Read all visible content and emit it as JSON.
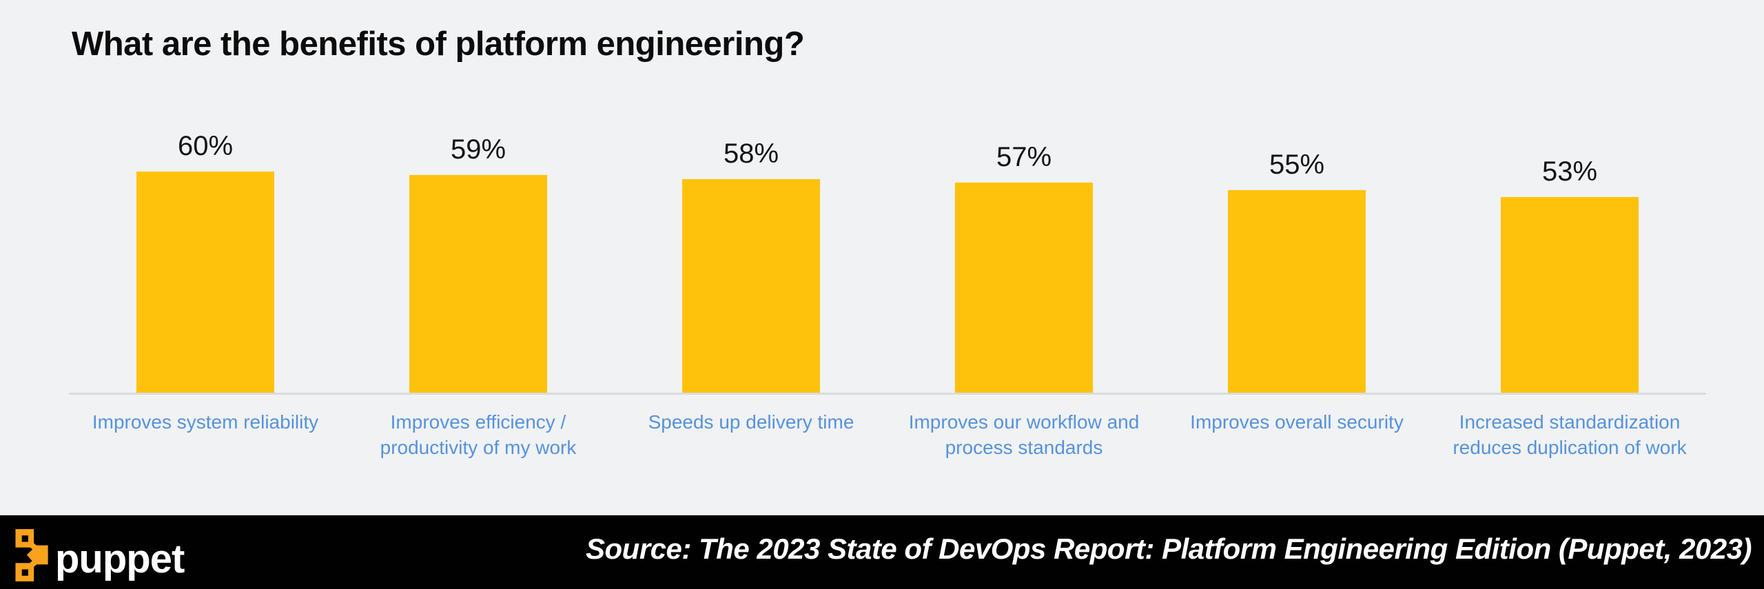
{
  "title": "What are the benefits of platform engineering?",
  "chart_data": {
    "type": "bar",
    "title": "What are the benefits of platform engineering?",
    "categories": [
      "Improves system reliability",
      "Improves efficiency / productivity of my work",
      "Speeds up delivery time",
      "Improves our workflow and process standards",
      "Improves overall security",
      "Increased standardization reduces duplication of work"
    ],
    "values": [
      60,
      59,
      58,
      57,
      55,
      53
    ],
    "value_labels": [
      "60%",
      "59%",
      "58%",
      "57%",
      "55%",
      "53%"
    ],
    "xlabel": "",
    "ylabel": "",
    "ylim": [
      0,
      100
    ],
    "grid": "off",
    "legend": "none",
    "bar_color": "#fec20d",
    "category_label_color": "#5693dc",
    "value_label_color": "#141414",
    "axis_line_color": "#d9dbde",
    "background_color": "#f1f2f4"
  },
  "footer": {
    "logo_icon": "puppet-logo-icon",
    "logo_text": "puppet",
    "source": "Source: The 2023 State of DevOps Report: Platform Engineering Edition (Puppet, 2023)",
    "background": "#010101",
    "logo_orange": "#f9a21e",
    "text_color": "#ffffff"
  }
}
